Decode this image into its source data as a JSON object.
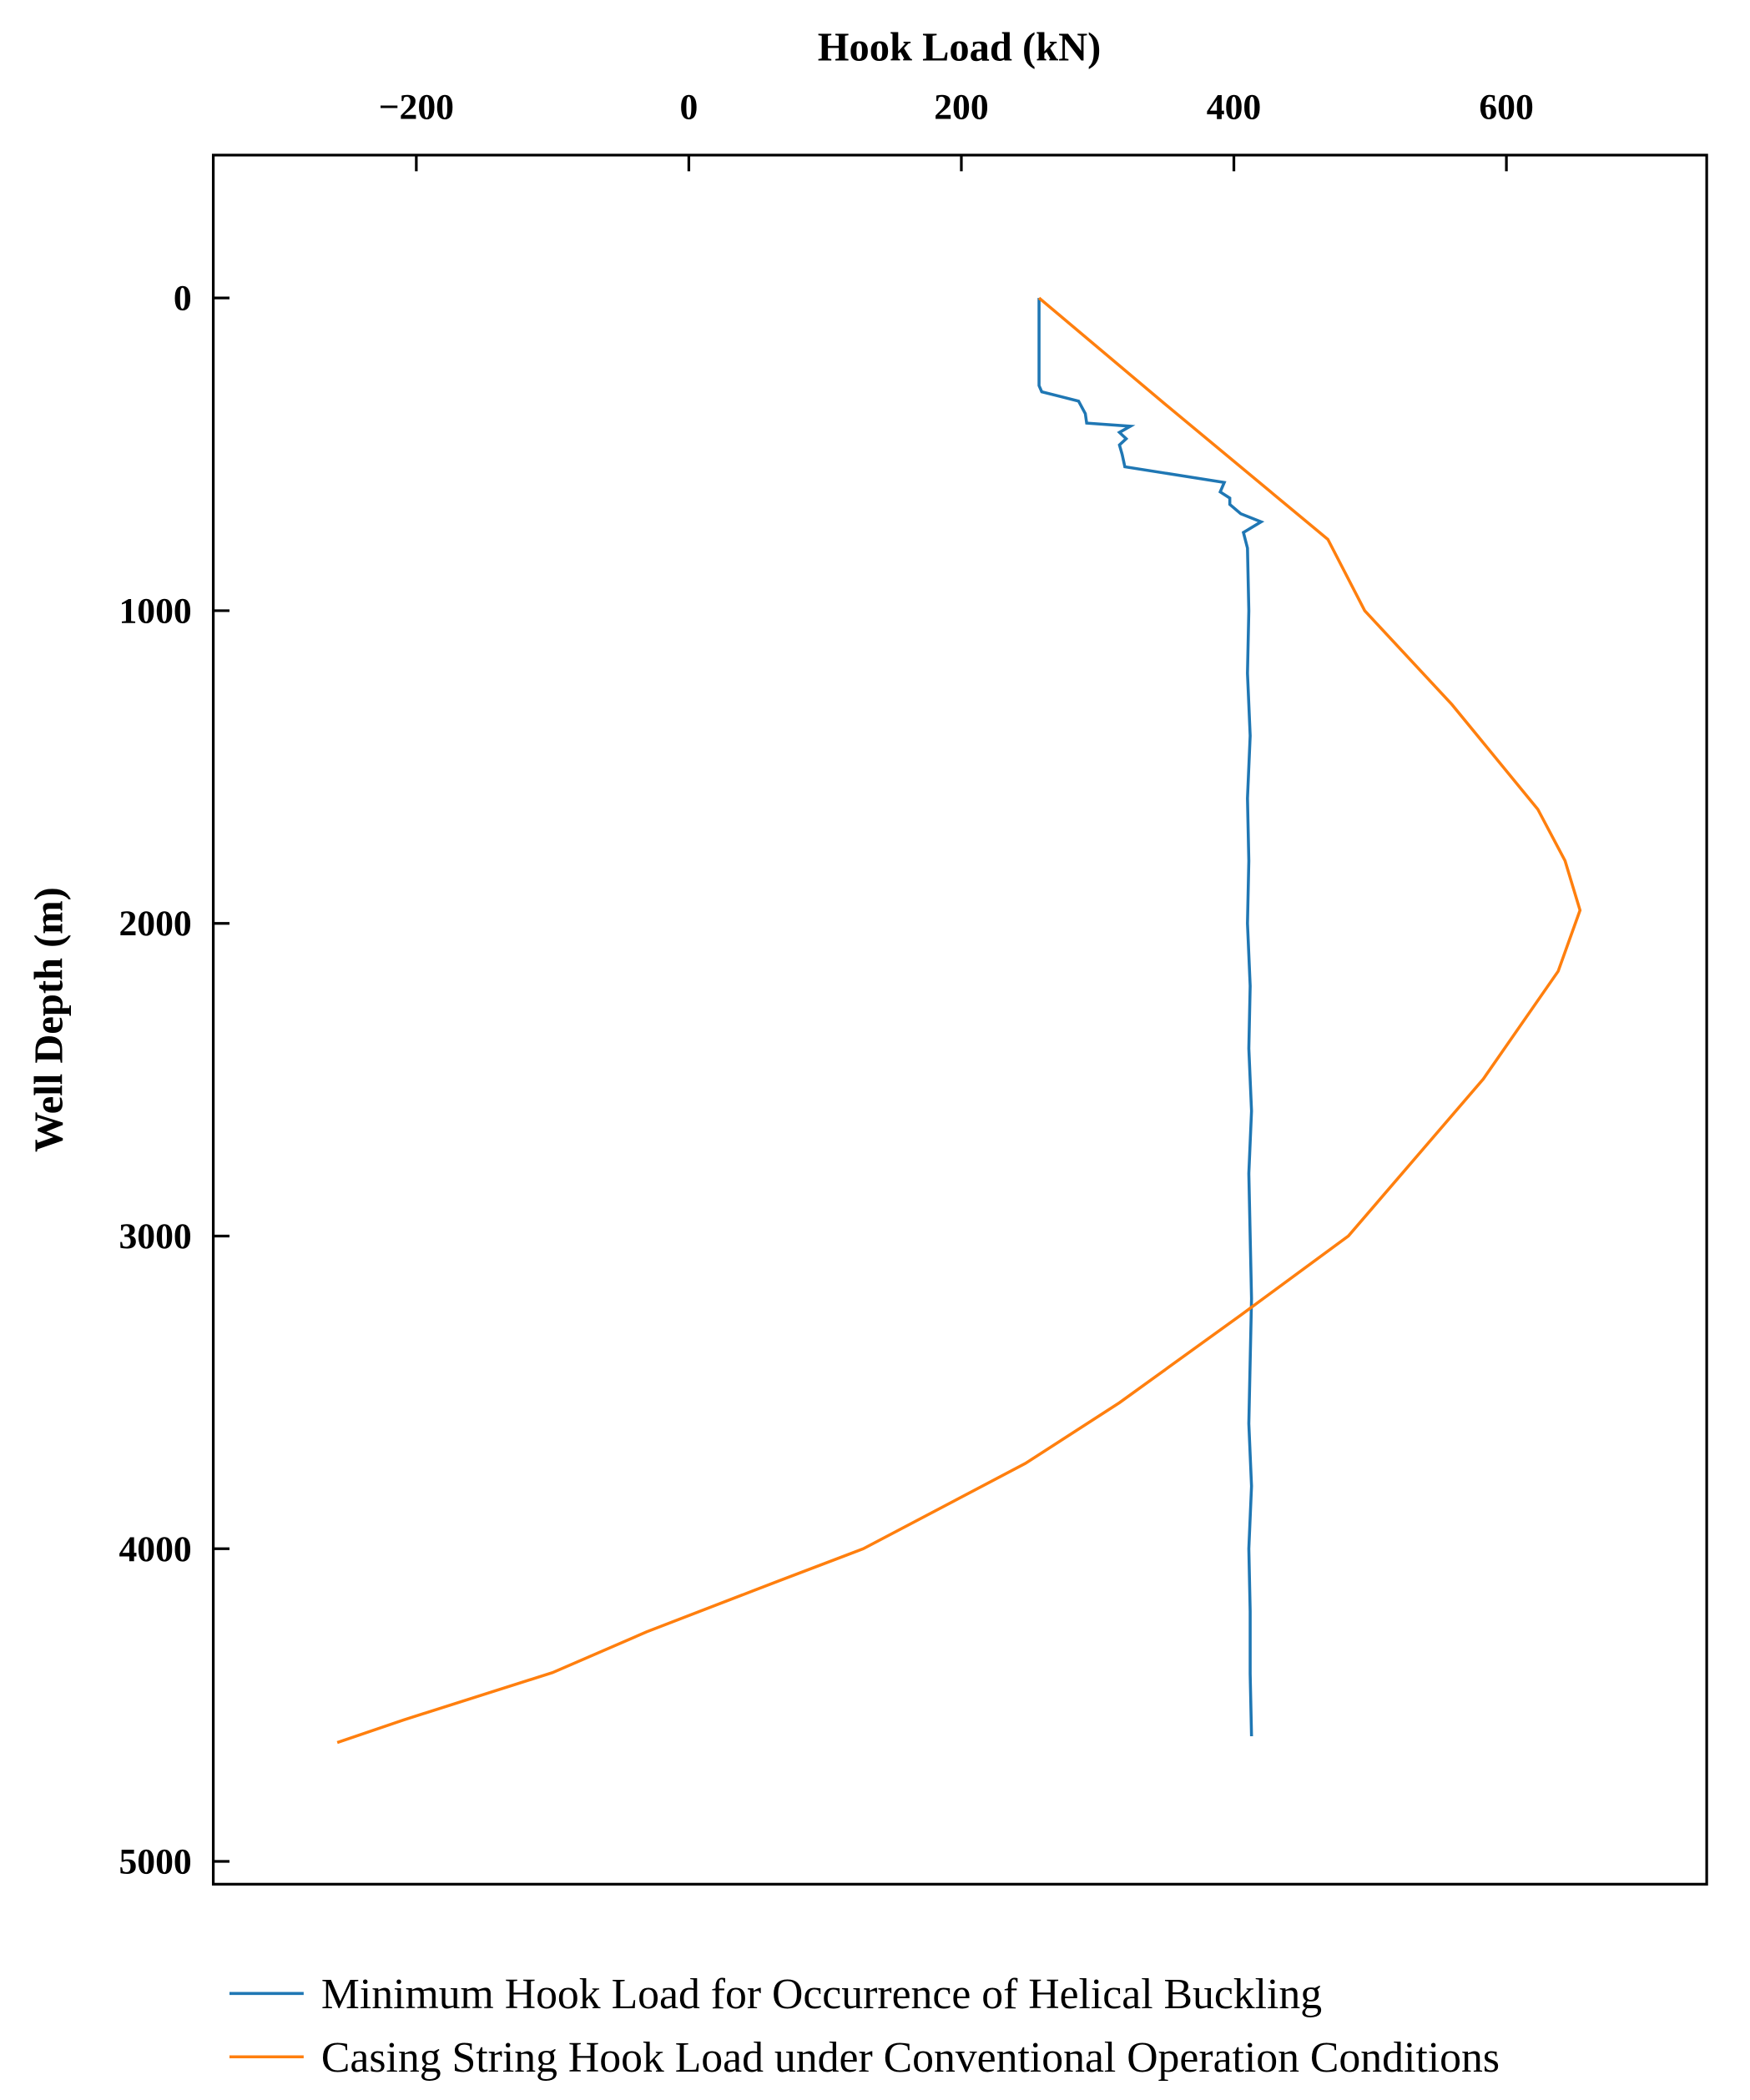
{
  "chart_data": {
    "type": "line",
    "x_label": "Hook Load (kN)",
    "y_label": "Well Depth (m)",
    "xlim": [
      -349,
      747
    ],
    "xticks": [
      {
        "value": -200,
        "label": "−200"
      },
      0,
      200,
      400,
      600
    ],
    "ylim": [
      -457,
      5073
    ],
    "yticks": [
      0,
      1000,
      2000,
      3000,
      4000,
      5000
    ],
    "y_inverted": true,
    "grid": false,
    "legend": "bottom",
    "series": [
      {
        "name": "Minimum Hook Load for Occurrence of Helical Buckling",
        "color": "#1f77b4",
        "depth": [
          0,
          280,
          300,
          330,
          370,
          400,
          410,
          430,
          450,
          470,
          500,
          540,
          590,
          620,
          640,
          660,
          690,
          716,
          750,
          800,
          1000,
          1200,
          1400,
          1600,
          1800,
          2000,
          2200,
          2400,
          2600,
          2800,
          3000,
          3200,
          3400,
          3600,
          3800,
          4000,
          4200,
          4400,
          4600
        ],
        "values": [
          257,
          257,
          259,
          286,
          291,
          292,
          324,
          316,
          321,
          316,
          318,
          320,
          393,
          390,
          397,
          397,
          405,
          420,
          407,
          410,
          411,
          410,
          412,
          410,
          411,
          410,
          412,
          411,
          413,
          411,
          412,
          413,
          412,
          411,
          413,
          411,
          412,
          412,
          413
        ]
      },
      {
        "name": "Casing String Hook Load under Conventional Operation Conditions",
        "color": "#ff7f0e",
        "depth": [
          0,
          341,
          772,
          1000,
          1300,
          1635,
          1800,
          1958,
          2153,
          2498,
          3000,
          3253,
          3533,
          3727,
          4000,
          4103,
          4266,
          4396,
          4547,
          4620
        ],
        "values": [
          257,
          350,
          469,
          496,
          560,
          623,
          643,
          654,
          638,
          583,
          484,
          405,
          316,
          247,
          128,
          66,
          -31,
          -100,
          -209,
          -258
        ]
      }
    ]
  }
}
